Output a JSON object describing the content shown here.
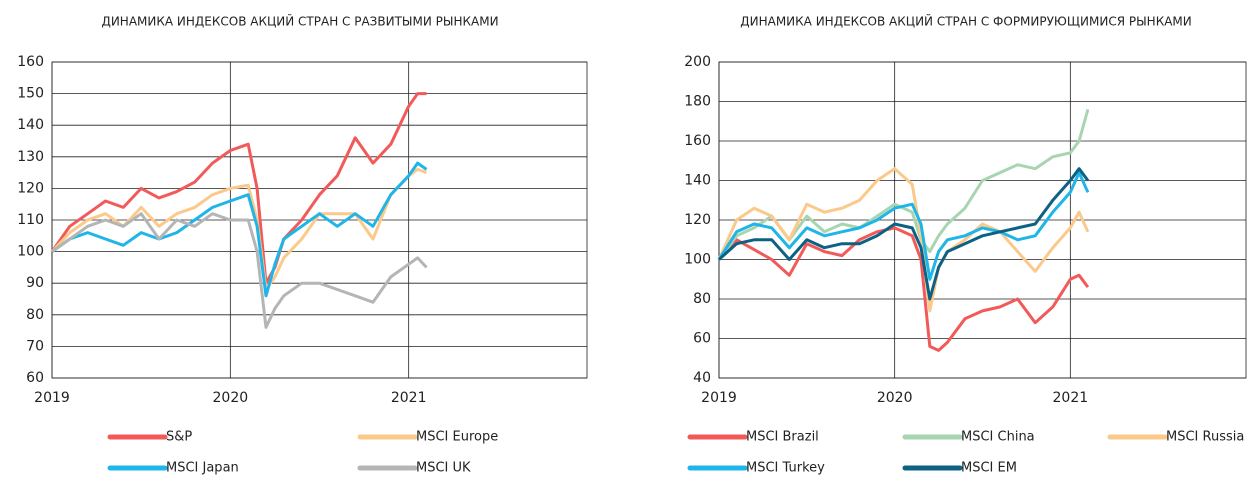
{
  "chart_data": [
    {
      "type": "line",
      "title": "ДИНАМИКА ИНДЕКСОВ АКЦИЙ СТРАН С РАЗВИТЫМИ РЫНКАМИ",
      "x": [
        2019,
        2019.1,
        2019.2,
        2019.3,
        2019.4,
        2019.5,
        2019.6,
        2019.7,
        2019.8,
        2019.9,
        2020,
        2020.1,
        2020.15,
        2020.2,
        2020.25,
        2020.3,
        2020.4,
        2020.5,
        2020.6,
        2020.7,
        2020.8,
        2020.9,
        2021,
        2021.05,
        2021.1
      ],
      "xlim": [
        2019,
        2022
      ],
      "xticks": [
        2019,
        2020,
        2021
      ],
      "ylim": [
        60,
        160
      ],
      "yticks": [
        60,
        70,
        80,
        90,
        100,
        110,
        120,
        130,
        140,
        150,
        160
      ],
      "grid": true,
      "series": [
        {
          "name": "S&P",
          "color": "#f25a5a",
          "values": [
            100,
            108,
            112,
            116,
            114,
            120,
            117,
            119,
            122,
            128,
            132,
            134,
            120,
            90,
            95,
            104,
            110,
            118,
            124,
            136,
            128,
            134,
            146,
            150,
            150
          ]
        },
        {
          "name": "MSCI Europe",
          "color": "#fbc98a",
          "values": [
            100,
            106,
            110,
            112,
            108,
            114,
            108,
            112,
            114,
            118,
            120,
            121,
            110,
            88,
            92,
            98,
            104,
            112,
            112,
            112,
            104,
            118,
            124,
            126,
            125
          ]
        },
        {
          "name": "MSCI Japan",
          "color": "#1fb5e8",
          "values": [
            100,
            104,
            106,
            104,
            102,
            106,
            104,
            106,
            110,
            114,
            116,
            118,
            108,
            86,
            96,
            104,
            108,
            112,
            108,
            112,
            108,
            118,
            124,
            128,
            126
          ]
        },
        {
          "name": "MSCI UK",
          "color": "#b5b5b5",
          "values": [
            100,
            104,
            108,
            110,
            108,
            112,
            104,
            110,
            108,
            112,
            110,
            110,
            100,
            76,
            82,
            86,
            90,
            90,
            88,
            86,
            84,
            92,
            96,
            98,
            95
          ]
        }
      ]
    },
    {
      "type": "line",
      "title": "ДИНАМИКА ИНДЕКСОВ АКЦИЙ СТРАН С ФОРМИРУЮЩИМИСЯ РЫНКАМИ",
      "x": [
        2019,
        2019.1,
        2019.2,
        2019.3,
        2019.4,
        2019.5,
        2019.6,
        2019.7,
        2019.8,
        2019.9,
        2020,
        2020.1,
        2020.15,
        2020.2,
        2020.25,
        2020.3,
        2020.4,
        2020.5,
        2020.6,
        2020.7,
        2020.8,
        2020.9,
        2021,
        2021.05,
        2021.1
      ],
      "xlim": [
        2019,
        2022
      ],
      "xticks": [
        2019,
        2020,
        2021
      ],
      "ylim": [
        40,
        200
      ],
      "yticks": [
        40,
        60,
        80,
        100,
        120,
        140,
        160,
        180,
        200
      ],
      "grid": true,
      "series": [
        {
          "name": "MSCI Brazil",
          "color": "#f25a5a",
          "values": [
            100,
            110,
            105,
            100,
            92,
            108,
            104,
            102,
            110,
            114,
            116,
            112,
            100,
            56,
            54,
            58,
            70,
            74,
            76,
            80,
            68,
            76,
            90,
            92,
            86
          ]
        },
        {
          "name": "MSCI China",
          "color": "#a8d5b0",
          "values": [
            100,
            112,
            116,
            122,
            110,
            122,
            114,
            118,
            116,
            122,
            128,
            124,
            110,
            104,
            112,
            118,
            126,
            140,
            144,
            148,
            146,
            152,
            154,
            160,
            176
          ]
        },
        {
          "name": "MSCI Russia",
          "color": "#fbc98a",
          "values": [
            100,
            120,
            126,
            122,
            110,
            128,
            124,
            126,
            130,
            140,
            146,
            138,
            112,
            74,
            96,
            104,
            110,
            118,
            114,
            104,
            94,
            106,
            116,
            124,
            114
          ]
        },
        {
          "name": "MSCI Turkey",
          "color": "#1fb5e8",
          "values": [
            100,
            114,
            118,
            116,
            106,
            116,
            112,
            114,
            116,
            120,
            126,
            128,
            118,
            90,
            104,
            110,
            112,
            116,
            114,
            110,
            112,
            124,
            134,
            144,
            134
          ]
        },
        {
          "name": "MSCI EM",
          "color": "#0d6283",
          "values": [
            100,
            108,
            110,
            110,
            100,
            110,
            106,
            108,
            108,
            112,
            118,
            116,
            106,
            80,
            96,
            104,
            108,
            112,
            114,
            116,
            118,
            130,
            140,
            146,
            140
          ]
        }
      ]
    }
  ]
}
